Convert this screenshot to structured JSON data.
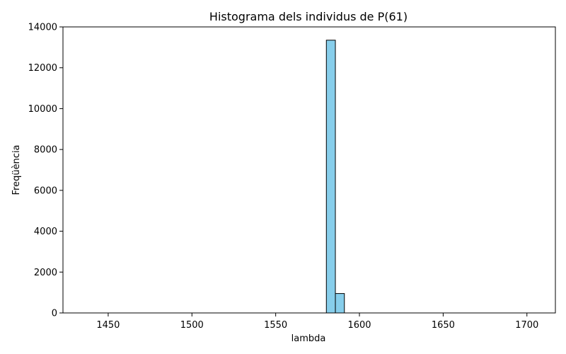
{
  "chart_data": {
    "type": "bar",
    "title": "Histograma dels individus de P(61)",
    "xlabel": "lambda",
    "ylabel": "Freqüència",
    "xlim": [
      1423,
      1717
    ],
    "ylim": [
      0,
      14000
    ],
    "xticks": [
      1450,
      1500,
      1550,
      1600,
      1650,
      1700
    ],
    "yticks": [
      0,
      2000,
      4000,
      6000,
      8000,
      10000,
      12000,
      14000
    ],
    "grid": false,
    "bar_color": "#87CEEB",
    "edge_color": "#000000",
    "bin_start": 1435,
    "bin_width": 5.38,
    "counts": [
      0,
      0,
      0,
      0,
      0,
      0,
      0,
      0,
      0,
      0,
      0,
      0,
      0,
      0,
      0,
      0,
      0,
      0,
      0,
      0,
      0,
      0,
      0,
      0,
      0,
      0,
      0,
      13350,
      950,
      0,
      0,
      0,
      0,
      0,
      0,
      0,
      0,
      0,
      0,
      0,
      0,
      0,
      0,
      0,
      0,
      0,
      0,
      0,
      0,
      0
    ]
  }
}
